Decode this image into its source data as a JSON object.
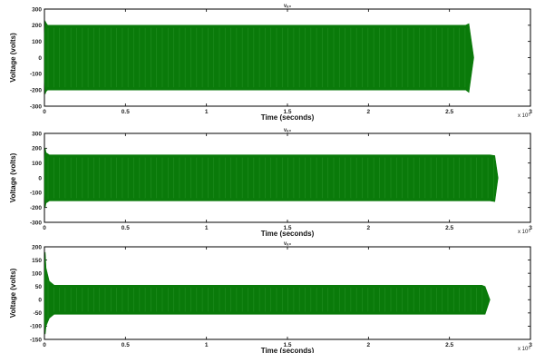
{
  "chart_data": [
    {
      "type": "line",
      "title": "vₐ₀",
      "xlabel": "Time (seconds)",
      "ylabel": "Voltage (volts)",
      "xlim": [
        0,
        3
      ],
      "ylim": [
        -300,
        300
      ],
      "x_ticks": [
        "0",
        "0.5",
        "1",
        "1.5",
        "2",
        "2.5",
        "3"
      ],
      "y_ticks": [
        "300",
        "200",
        "100",
        "0",
        "-100",
        "-200",
        "-300"
      ],
      "x_exponent": "x 10⁵",
      "color": "#0a7a0a",
      "series": [
        {
          "x": [
            0,
            0.005,
            0.01,
            0.02,
            2.6,
            2.62,
            2.65
          ],
          "upper": [
            150,
            225,
            215,
            200,
            200,
            210,
            0
          ],
          "lower": [
            -150,
            -225,
            -210,
            -200,
            -200,
            -215,
            0
          ]
        }
      ]
    },
    {
      "type": "line",
      "title": "vₐ₀",
      "xlabel": "Time (seconds)",
      "ylabel": "Voltage (volts)",
      "xlim": [
        0,
        3
      ],
      "ylim": [
        -300,
        300
      ],
      "x_ticks": [
        "0",
        "0.5",
        "1",
        "1.5",
        "2",
        "2.5",
        "3"
      ],
      "y_ticks": [
        "300",
        "200",
        "100",
        "0",
        "-100",
        "-200",
        "-300"
      ],
      "x_exponent": "x 10⁵",
      "color": "#0a7a0a",
      "series": [
        {
          "x": [
            0,
            0.005,
            0.01,
            0.03,
            2.75,
            2.78,
            2.8
          ],
          "upper": [
            120,
            200,
            170,
            155,
            155,
            150,
            0
          ],
          "lower": [
            -120,
            -200,
            -170,
            -155,
            -155,
            -160,
            0
          ]
        }
      ]
    },
    {
      "type": "line",
      "title": "vₐ₀",
      "xlabel": "Time (seconds)",
      "ylabel": "Voltage (volts)",
      "xlim": [
        0,
        3
      ],
      "ylim": [
        -150,
        200
      ],
      "x_ticks": [
        "0",
        "0.5",
        "1",
        "1.5",
        "2",
        "2.5",
        "3"
      ],
      "y_ticks": [
        "200",
        "150",
        "100",
        "50",
        "0",
        "-50",
        "-100",
        "-150"
      ],
      "x_exponent": "x 10⁵",
      "color": "#0a7a0a",
      "series": [
        {
          "x": [
            0,
            0.005,
            0.01,
            0.03,
            0.06,
            2.7,
            2.72,
            2.75
          ],
          "upper": [
            80,
            180,
            120,
            70,
            55,
            55,
            50,
            0
          ],
          "lower": [
            -80,
            -130,
            -100,
            -70,
            -55,
            -55,
            -55,
            0
          ]
        }
      ]
    }
  ]
}
